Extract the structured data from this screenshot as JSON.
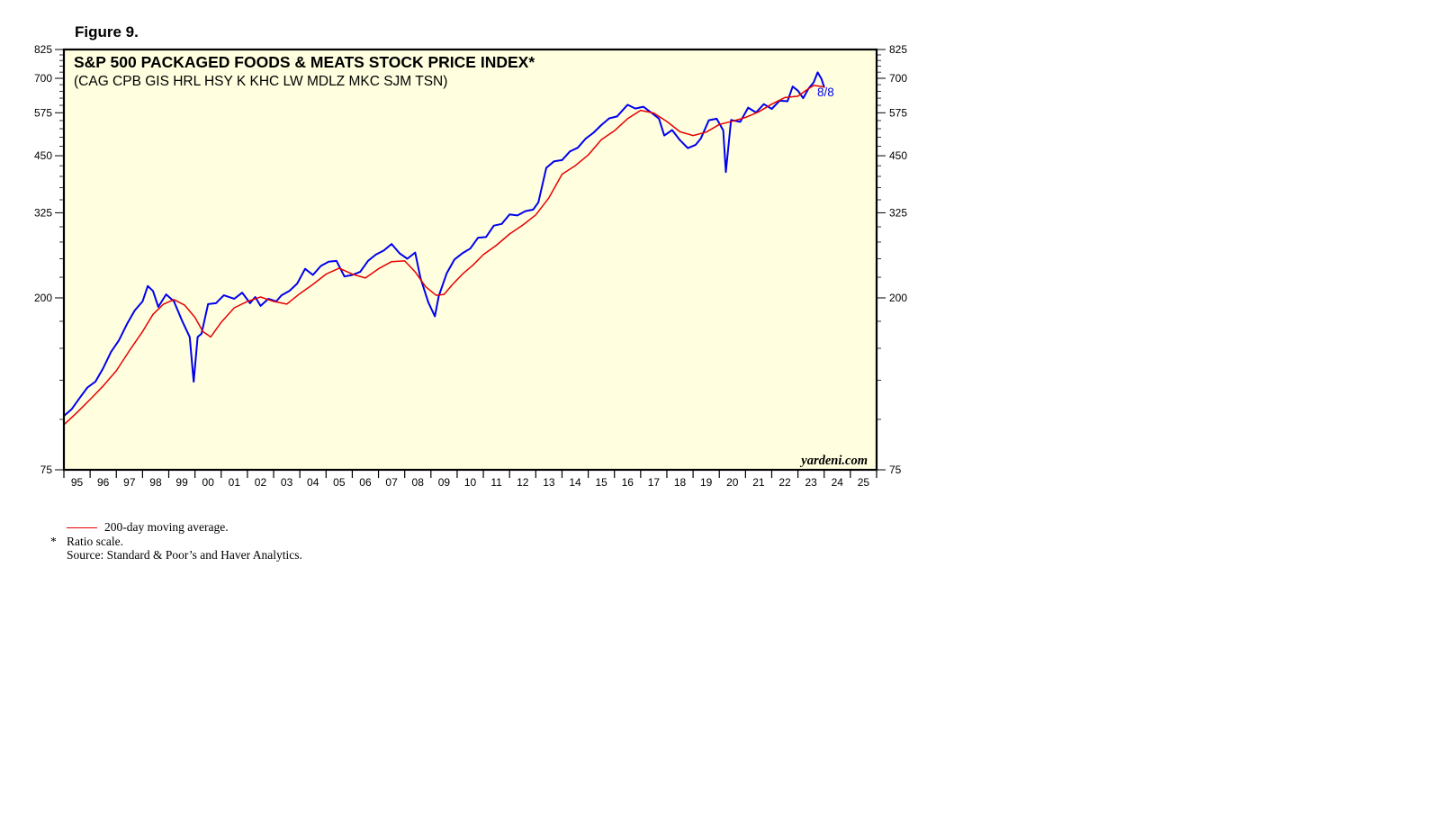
{
  "figure_label": "Figure 9.",
  "chart_data": {
    "type": "line",
    "title": "S&P 500 PACKAGED FOODS & MEATS STOCK PRICE INDEX*",
    "subtitle": "(CAG CPB GIS HRL HSY K KHC LW MDLZ MKC SJM TSN)",
    "yscale": "log",
    "ylim": [
      75,
      825
    ],
    "xlim": [
      1995,
      2026
    ],
    "y_ticks": [
      75,
      200,
      325,
      450,
      575,
      700,
      825
    ],
    "x_tick_labels": [
      "95",
      "96",
      "97",
      "98",
      "99",
      "00",
      "01",
      "02",
      "03",
      "04",
      "05",
      "06",
      "07",
      "08",
      "09",
      "10",
      "11",
      "12",
      "13",
      "14",
      "15",
      "16",
      "17",
      "18",
      "19",
      "20",
      "21",
      "22",
      "23",
      "24",
      "25"
    ],
    "grid": false,
    "background_color": "#ffffe0",
    "watermark": "yardeni.com",
    "end_label": "8/8",
    "series": [
      {
        "name": "S&P 500 Packaged Foods & Meats",
        "color": "#0000ee",
        "x": [
          1995.0,
          1995.3,
          1995.6,
          1995.9,
          1996.2,
          1996.5,
          1996.8,
          1997.1,
          1997.4,
          1997.7,
          1998.0,
          1998.2,
          1998.4,
          1998.6,
          1998.9,
          1999.2,
          1999.5,
          1999.8,
          1999.95,
          2000.1,
          2000.25,
          2000.5,
          2000.8,
          2001.1,
          2001.5,
          2001.8,
          2002.1,
          2002.3,
          2002.5,
          2002.8,
          2003.1,
          2003.3,
          2003.6,
          2003.9,
          2004.2,
          2004.5,
          2004.8,
          2005.1,
          2005.4,
          2005.7,
          2006.0,
          2006.3,
          2006.6,
          2006.9,
          2007.2,
          2007.5,
          2007.8,
          2008.1,
          2008.4,
          2008.6,
          2008.9,
          2009.15,
          2009.3,
          2009.6,
          2009.9,
          2010.2,
          2010.5,
          2010.8,
          2011.1,
          2011.4,
          2011.7,
          2012.0,
          2012.3,
          2012.6,
          2012.9,
          2013.1,
          2013.4,
          2013.7,
          2014.0,
          2014.3,
          2014.6,
          2014.9,
          2015.2,
          2015.5,
          2015.8,
          2016.1,
          2016.5,
          2016.8,
          2017.1,
          2017.4,
          2017.7,
          2017.9,
          2018.2,
          2018.5,
          2018.8,
          2019.1,
          2019.3,
          2019.6,
          2019.9,
          2020.15,
          2020.25,
          2020.45,
          2020.8,
          2021.1,
          2021.4,
          2021.7,
          2022.0,
          2022.3,
          2022.6,
          2022.8,
          2023.0,
          2023.2,
          2023.4,
          2023.6,
          2023.75,
          2023.9,
          2024.0
        ],
        "values": [
          102,
          106,
          113,
          120,
          124,
          134,
          147,
          157,
          172,
          186,
          196,
          214,
          208,
          190,
          204,
          196,
          176,
          160,
          124,
          160,
          163,
          193,
          194,
          203,
          199,
          206,
          194,
          201,
          191,
          199,
          196,
          203,
          208,
          217,
          236,
          228,
          240,
          246,
          247,
          226,
          228,
          232,
          247,
          256,
          262,
          272,
          258,
          250,
          259,
          224,
          195,
          180,
          202,
          230,
          249,
          258,
          265,
          282,
          283,
          302,
          305,
          322,
          320,
          328,
          331,
          345,
          420,
          436,
          439,
          461,
          471,
          496,
          513,
          536,
          557,
          563,
          602,
          589,
          595,
          576,
          556,
          505,
          521,
          492,
          470,
          479,
          497,
          551,
          556,
          520,
          410,
          552,
          546,
          592,
          576,
          604,
          588,
          616,
          614,
          668,
          652,
          625,
          660,
          684,
          724,
          697,
          666
        ]
      },
      {
        "name": "200-day moving average.",
        "color": "#e60000",
        "x": [
          1995.0,
          1995.5,
          1996.0,
          1996.5,
          1997.0,
          1997.5,
          1998.0,
          1998.4,
          1998.8,
          1999.2,
          1999.6,
          2000.0,
          2000.3,
          2000.6,
          2001.0,
          2001.5,
          2002.0,
          2002.5,
          2003.0,
          2003.5,
          2004.0,
          2004.5,
          2005.0,
          2005.5,
          2006.0,
          2006.5,
          2007.0,
          2007.5,
          2008.0,
          2008.4,
          2008.8,
          2009.2,
          2009.5,
          2009.8,
          2010.2,
          2010.6,
          2011.0,
          2011.5,
          2012.0,
          2012.5,
          2013.0,
          2013.5,
          2014.0,
          2014.5,
          2015.0,
          2015.5,
          2016.0,
          2016.5,
          2017.0,
          2017.5,
          2018.0,
          2018.5,
          2019.0,
          2019.5,
          2020.0,
          2020.5,
          2021.0,
          2021.5,
          2022.0,
          2022.5,
          2023.0,
          2023.3,
          2023.6,
          2023.9,
          2024.0
        ],
        "values": [
          97,
          104,
          112,
          121,
          132,
          148,
          165,
          182,
          193,
          198,
          192,
          179,
          165,
          160,
          174,
          189,
          196,
          201,
          196,
          193,
          205,
          216,
          229,
          237,
          229,
          224,
          236,
          246,
          247,
          232,
          213,
          203,
          204,
          215,
          229,
          241,
          256,
          270,
          288,
          303,
          321,
          354,
          405,
          425,
          452,
          493,
          519,
          556,
          583,
          574,
          547,
          516,
          505,
          515,
          538,
          548,
          560,
          578,
          604,
          627,
          632,
          653,
          672,
          668,
          666
        ]
      }
    ]
  },
  "footnotes": {
    "legend_label": "200-day moving average.",
    "star": "*",
    "ratio_note": "Ratio scale.",
    "source": "Source: Standard & Poor’s and Haver Analytics."
  }
}
